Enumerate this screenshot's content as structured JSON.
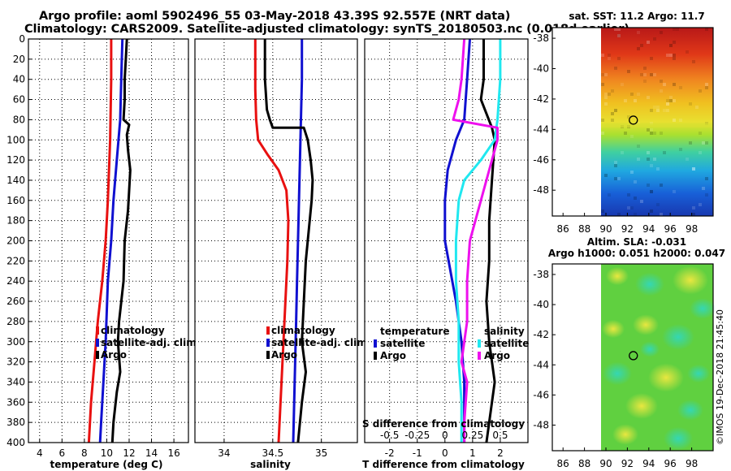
{
  "title": {
    "line1": "Argo profile: aoml 5902496_55 03-May-2018 43.39S 92.557E (NRT data)",
    "line2": "Climatology: CARS2009. Satellite-adjusted climatology: synTS_20180503.nc (0.018d earlier)"
  },
  "stamp": "©IMOS 19-Dec-2018 21:45:40",
  "colors": {
    "climatology": "#e81010",
    "satellite": "#1010d0",
    "argo": "#000000",
    "s_diff_clim": "#ee10ee",
    "s_diff_sat": "#20e8f0"
  },
  "chart_data": [
    {
      "id": "temperature",
      "type": "line",
      "xlabel": "temperature (deg C)",
      "xlim": [
        3,
        17.3
      ],
      "xticks": [
        4,
        6,
        8,
        10,
        12,
        14,
        16
      ],
      "ylim": [
        0,
        400
      ],
      "yticks": [
        0,
        20,
        40,
        60,
        80,
        100,
        120,
        140,
        160,
        180,
        200,
        220,
        240,
        260,
        280,
        300,
        320,
        340,
        360,
        380,
        400
      ],
      "grid": true,
      "legend": [
        "climatology",
        "satellite-adj. clim.",
        "Argo"
      ],
      "series": [
        {
          "name": "climatology",
          "color": "#e81010",
          "points": [
            [
              10.4,
              0
            ],
            [
              10.4,
              40
            ],
            [
              10.3,
              100
            ],
            [
              10.1,
              160
            ],
            [
              9.9,
              200
            ],
            [
              9.6,
              240
            ],
            [
              9.2,
              280
            ],
            [
              8.9,
              320
            ],
            [
              8.6,
              360
            ],
            [
              8.4,
              400
            ]
          ]
        },
        {
          "name": "satellite-adj. clim.",
          "color": "#1010d0",
          "points": [
            [
              11.4,
              0
            ],
            [
              11.3,
              40
            ],
            [
              11.2,
              80
            ],
            [
              10.9,
              120
            ],
            [
              10.6,
              160
            ],
            [
              10.4,
              200
            ],
            [
              10.1,
              240
            ],
            [
              9.9,
              300
            ],
            [
              9.7,
              340
            ],
            [
              9.5,
              380
            ],
            [
              9.4,
              400
            ]
          ]
        },
        {
          "name": "Argo",
          "color": "#000000",
          "points": [
            [
              11.8,
              0
            ],
            [
              11.7,
              20
            ],
            [
              11.6,
              40
            ],
            [
              11.6,
              60
            ],
            [
              11.5,
              80
            ],
            [
              12.0,
              85
            ],
            [
              11.8,
              95
            ],
            [
              11.9,
              110
            ],
            [
              12.1,
              130
            ],
            [
              12.0,
              150
            ],
            [
              11.9,
              170
            ],
            [
              11.6,
              200
            ],
            [
              11.5,
              240
            ],
            [
              11.1,
              280
            ],
            [
              11.0,
              300
            ],
            [
              11.2,
              330
            ],
            [
              10.9,
              350
            ],
            [
              10.6,
              380
            ],
            [
              10.5,
              400
            ]
          ]
        }
      ]
    },
    {
      "id": "salinity",
      "type": "line",
      "xlabel": "salinity",
      "xlim": [
        33.7,
        35.37
      ],
      "xticks": [
        34,
        34.5,
        35
      ],
      "ylim": [
        0,
        400
      ],
      "grid": true,
      "legend": [
        "climatology",
        "satellite-adj. clim.",
        "Argo"
      ],
      "series": [
        {
          "name": "climatology",
          "color": "#e81010",
          "points": [
            [
              34.32,
              0
            ],
            [
              34.32,
              50
            ],
            [
              34.33,
              80
            ],
            [
              34.35,
              100
            ],
            [
              34.45,
              115
            ],
            [
              34.56,
              130
            ],
            [
              34.64,
              150
            ],
            [
              34.66,
              180
            ],
            [
              34.65,
              220
            ],
            [
              34.63,
              260
            ],
            [
              34.61,
              300
            ],
            [
              34.59,
              340
            ],
            [
              34.57,
              380
            ],
            [
              34.56,
              400
            ]
          ]
        },
        {
          "name": "satellite-adj. clim.",
          "color": "#1010d0",
          "points": [
            [
              34.8,
              0
            ],
            [
              34.8,
              40
            ],
            [
              34.79,
              80
            ],
            [
              34.78,
              120
            ],
            [
              34.77,
              160
            ],
            [
              34.76,
              200
            ],
            [
              34.75,
              240
            ],
            [
              34.74,
              280
            ],
            [
              34.73,
              320
            ],
            [
              34.72,
              360
            ],
            [
              34.71,
              400
            ]
          ]
        },
        {
          "name": "Argo",
          "color": "#000000",
          "points": [
            [
              34.42,
              0
            ],
            [
              34.42,
              40
            ],
            [
              34.44,
              70
            ],
            [
              34.47,
              80
            ],
            [
              34.5,
              88
            ],
            [
              34.82,
              88
            ],
            [
              34.86,
              100
            ],
            [
              34.89,
              120
            ],
            [
              34.91,
              140
            ],
            [
              34.9,
              160
            ],
            [
              34.88,
              180
            ],
            [
              34.86,
              200
            ],
            [
              34.84,
              220
            ],
            [
              34.82,
              260
            ],
            [
              34.8,
              300
            ],
            [
              34.84,
              330
            ],
            [
              34.8,
              360
            ],
            [
              34.76,
              400
            ]
          ]
        }
      ]
    },
    {
      "id": "difference",
      "type": "line",
      "xlabel": "T difference from climatology",
      "xlabel2": "S difference from climatology",
      "xlim": [
        -2.9,
        3.0
      ],
      "xticks": [
        -2,
        -1,
        0,
        1,
        2
      ],
      "xticklabels": [
        "-2",
        "-1",
        "0",
        "1",
        "2"
      ],
      "xticks2": [
        -0.5,
        -0.25,
        0,
        0.25,
        0.5
      ],
      "xticklabels2": [
        "-0.5",
        "-0.25",
        "0",
        "0.25",
        "0.5"
      ],
      "ylim": [
        0,
        400
      ],
      "grid": true,
      "legend_left": {
        "title": "temperature",
        "items": [
          "satellite",
          "Argo"
        ]
      },
      "legend_right": {
        "title": "salinity",
        "items": [
          "satellite",
          "Argo"
        ]
      },
      "series": [
        {
          "name": "T satellite",
          "color": "#1010d0",
          "points": [
            [
              0.9,
              0
            ],
            [
              0.8,
              40
            ],
            [
              0.7,
              80
            ],
            [
              0.4,
              100
            ],
            [
              0.1,
              130
            ],
            [
              0.0,
              160
            ],
            [
              0.0,
              200
            ],
            [
              0.2,
              230
            ],
            [
              0.4,
              260
            ],
            [
              0.6,
              300
            ],
            [
              0.7,
              340
            ],
            [
              0.7,
              380
            ],
            [
              0.7,
              400
            ]
          ]
        },
        {
          "name": "T Argo",
          "color": "#000000",
          "points": [
            [
              1.4,
              0
            ],
            [
              1.4,
              40
            ],
            [
              1.3,
              60
            ],
            [
              1.7,
              88
            ],
            [
              1.8,
              100
            ],
            [
              1.7,
              140
            ],
            [
              1.6,
              180
            ],
            [
              1.6,
              220
            ],
            [
              1.5,
              260
            ],
            [
              1.6,
              300
            ],
            [
              1.8,
              340
            ],
            [
              1.6,
              380
            ],
            [
              1.5,
              400
            ]
          ]
        },
        {
          "name": "S satellite",
          "color": "#20e8f0",
          "points": [
            [
              2.0,
              0
            ],
            [
              2.0,
              40
            ],
            [
              1.9,
              80
            ],
            [
              1.8,
              100
            ],
            [
              1.3,
              120
            ],
            [
              0.7,
              140
            ],
            [
              0.5,
              160
            ],
            [
              0.4,
              200
            ],
            [
              0.4,
              240
            ],
            [
              0.5,
              280
            ],
            [
              0.5,
              320
            ],
            [
              0.6,
              360
            ],
            [
              0.6,
              400
            ]
          ]
        },
        {
          "name": "S Argo",
          "color": "#ee10ee",
          "points": [
            [
              0.7,
              0
            ],
            [
              0.6,
              40
            ],
            [
              0.5,
              60
            ],
            [
              0.3,
              80
            ],
            [
              1.9,
              88
            ],
            [
              1.9,
              100
            ],
            [
              1.5,
              140
            ],
            [
              1.2,
              170
            ],
            [
              0.9,
              200
            ],
            [
              0.8,
              240
            ],
            [
              0.8,
              280
            ],
            [
              0.7,
              300
            ],
            [
              0.6,
              320
            ],
            [
              0.8,
              340
            ],
            [
              0.7,
              380
            ],
            [
              0.7,
              400
            ]
          ]
        }
      ]
    },
    {
      "id": "sst_map",
      "type": "heatmap",
      "title": "sat. SST: 11.2 Argo: 11.7",
      "xlim": [
        85,
        100
      ],
      "ylim": [
        -49.7,
        -37.3
      ],
      "xticks": [
        86,
        88,
        90,
        92,
        94,
        96,
        98
      ],
      "yticks": [
        -38,
        -40,
        -42,
        -44,
        -46,
        -48
      ],
      "data_xlim": [
        90,
        100
      ],
      "marker": {
        "lon": 92.557,
        "lat": -43.39
      }
    },
    {
      "id": "sla_map",
      "type": "heatmap",
      "title": "Altim. SLA: -0.031",
      "subtitle": "Argo h1000: 0.051 h2000: 0.047",
      "xlim": [
        85,
        100
      ],
      "ylim": [
        -49.7,
        -37.3
      ],
      "xticks": [
        86,
        88,
        90,
        92,
        94,
        96,
        98
      ],
      "yticks": [
        -38,
        -40,
        -42,
        -44,
        -46,
        -48
      ],
      "data_xlim": [
        90,
        100
      ],
      "marker": {
        "lon": 92.557,
        "lat": -43.39
      }
    }
  ]
}
